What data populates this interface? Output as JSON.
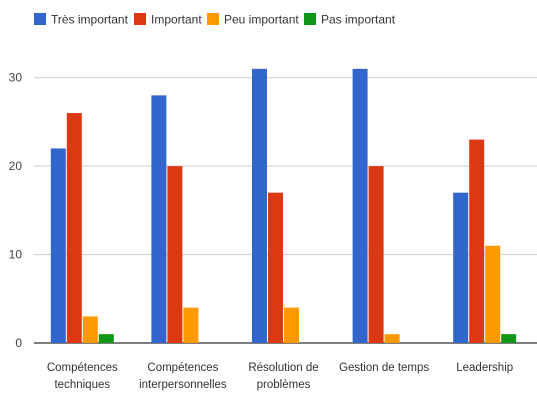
{
  "chart_data": {
    "type": "bar",
    "title": "",
    "xlabel": "",
    "ylabel": "",
    "categories": [
      [
        "Compétences",
        "techniques"
      ],
      [
        "Compétences",
        "interpersonnelles"
      ],
      [
        "Résolution de",
        "problèmes"
      ],
      [
        "Gestion de temps"
      ],
      [
        "Leadership"
      ]
    ],
    "series": [
      {
        "name": "Très important",
        "color": "#3366cc",
        "values": [
          22,
          28,
          31,
          31,
          17
        ]
      },
      {
        "name": "Important",
        "color": "#dc3912",
        "values": [
          26,
          20,
          17,
          20,
          23
        ]
      },
      {
        "name": "Peu important",
        "color": "#ff9900",
        "values": [
          3,
          4,
          4,
          1,
          11
        ]
      },
      {
        "name": "Pas important",
        "color": "#109618",
        "values": [
          1,
          0,
          0,
          0,
          1
        ]
      }
    ],
    "yticks": [
      0,
      10,
      20,
      30
    ],
    "ylim": [
      0,
      32
    ],
    "grid": true,
    "legend": "top"
  }
}
